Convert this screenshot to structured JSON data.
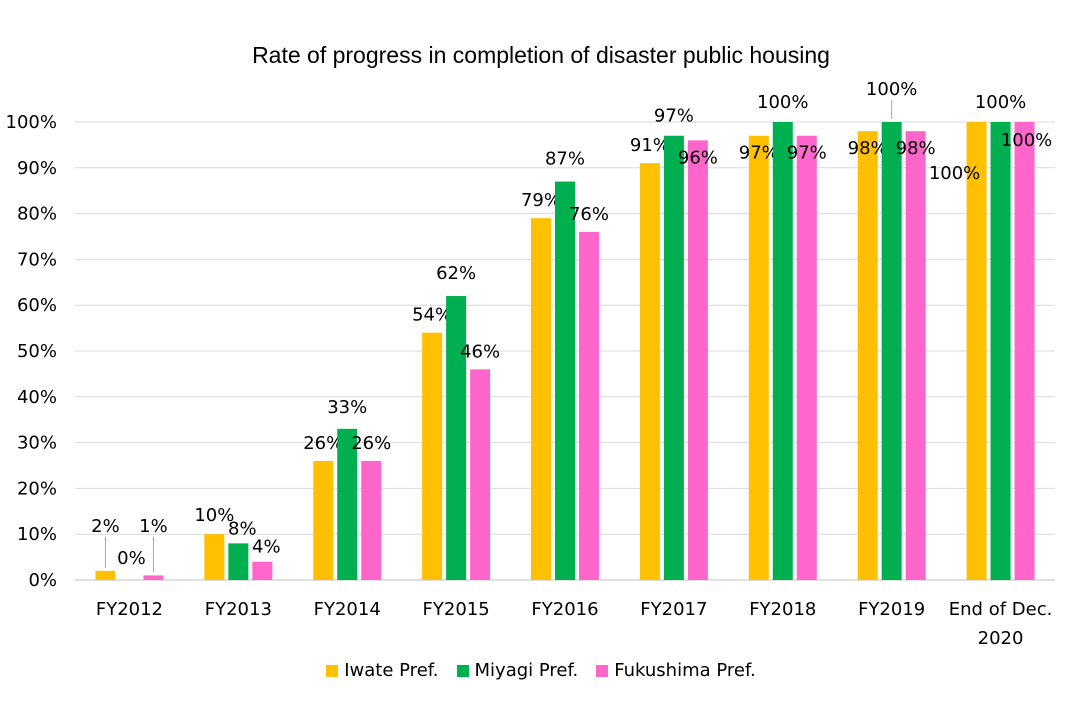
{
  "chart_data": {
    "type": "bar",
    "title": "Rate of progress in completion of disaster public housing",
    "categories": [
      "FY2012",
      "FY2013",
      "FY2014",
      "FY2015",
      "FY2016",
      "FY2017",
      "FY2018",
      "FY2019",
      "End of Dec. 2020"
    ],
    "category_lines": [
      [
        "FY2012"
      ],
      [
        "FY2013"
      ],
      [
        "FY2014"
      ],
      [
        "FY2015"
      ],
      [
        "FY2016"
      ],
      [
        "FY2017"
      ],
      [
        "FY2018"
      ],
      [
        "FY2019"
      ],
      [
        "End of Dec.",
        "2020"
      ]
    ],
    "series": [
      {
        "name": "Iwate Pref.",
        "color": "#FFC000",
        "values": [
          2,
          10,
          26,
          54,
          79,
          91,
          97,
          98,
          100
        ],
        "labels": [
          "2%",
          "10%",
          "26%",
          "54%",
          "79%",
          "91%",
          "97%",
          "98%",
          "100%"
        ]
      },
      {
        "name": "Miyagi Pref.",
        "color": "#00B050",
        "values": [
          0,
          8,
          33,
          62,
          87,
          97,
          100,
          100,
          100
        ],
        "labels": [
          "0%",
          "8%",
          "33%",
          "62%",
          "87%",
          "97%",
          "100%",
          "100%",
          "100%"
        ]
      },
      {
        "name": "Fukushima Pref.",
        "color": "#FF66CC",
        "values": [
          1,
          4,
          26,
          46,
          76,
          96,
          97,
          98,
          100
        ],
        "labels": [
          "1%",
          "4%",
          "26%",
          "46%",
          "76%",
          "96%",
          "97%",
          "98%",
          "100%"
        ]
      }
    ],
    "ylim": [
      0,
      100
    ],
    "yticks": [
      "0%",
      "10%",
      "20%",
      "30%",
      "40%",
      "50%",
      "60%",
      "70%",
      "80%",
      "90%",
      "100%"
    ],
    "xlabel": "",
    "ylabel": "",
    "grid": true,
    "legend": "bottom"
  }
}
